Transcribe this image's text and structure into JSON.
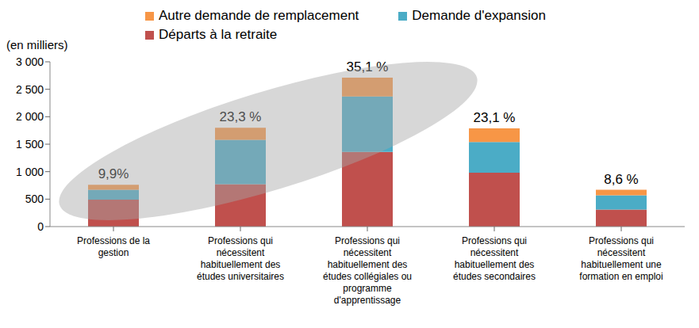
{
  "chart_data": {
    "type": "bar",
    "stacked": true,
    "y_label": "(en milliers)",
    "categories": [
      "Professions de la gestion",
      "Professions qui nécessitent habituellement  des études universitaires",
      "Professions qui nécessitent habituellement des études collégiales ou programme d'apprentissage",
      "Professions qui nécessitent habituellement des études secondaires",
      "Professions qui nécessitent habituellement une formation en emploi"
    ],
    "series": [
      {
        "name": "Départs à la retraite",
        "color": "#c0504d",
        "values": [
          490,
          770,
          1360,
          980,
          310
        ]
      },
      {
        "name": "Demande d'expansion",
        "color": "#4bacc6",
        "values": [
          180,
          810,
          1010,
          560,
          260
        ]
      },
      {
        "name": "Autre demande de remplacement",
        "color": "#f79646",
        "values": [
          90,
          220,
          340,
          250,
          100
        ]
      }
    ],
    "total_labels": [
      "9,9%",
      "23,3 %",
      "35,1 %",
      "23,1 %",
      "8,6 %"
    ],
    "ylim": [
      0,
      3000
    ],
    "yticks": [
      0,
      500,
      {
        "value": 1000,
        "label": "1 000"
      },
      {
        "value": 1500,
        "label": "1 500"
      },
      {
        "value": 2000,
        "label": "2 000"
      },
      {
        "value": 2500,
        "label": "2 500"
      },
      {
        "value": 3000,
        "label": "3 000"
      }
    ],
    "grid": false,
    "legend": "top"
  }
}
